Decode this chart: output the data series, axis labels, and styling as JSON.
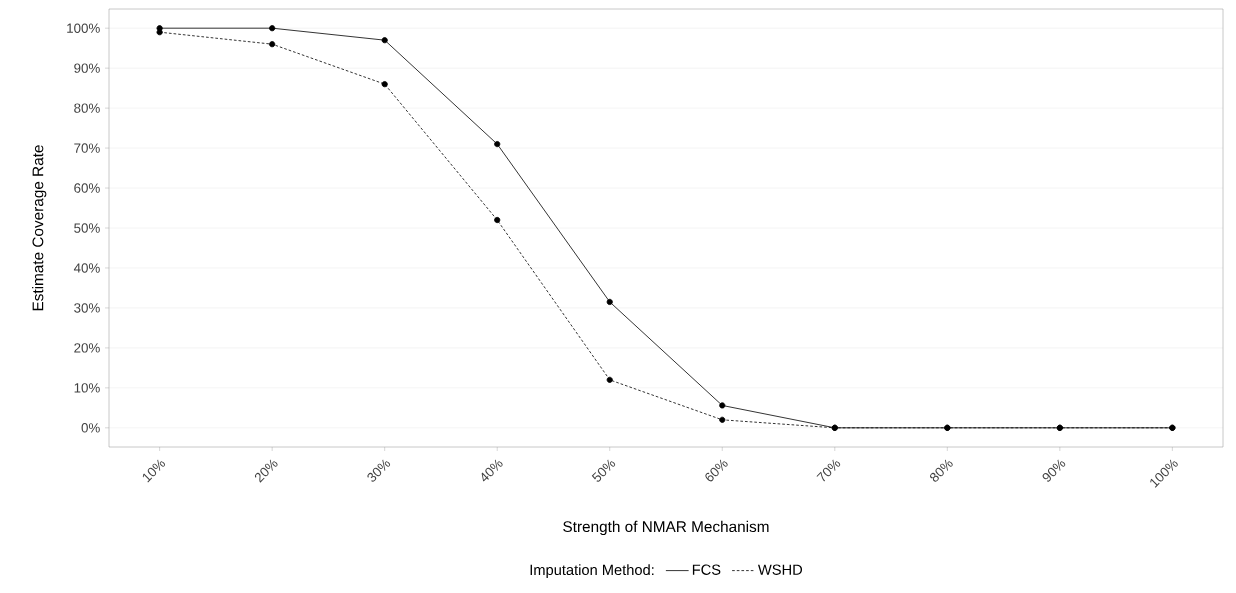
{
  "chart_data": {
    "type": "line",
    "xlabel": "Strength of NMAR Mechanism",
    "ylabel": "Estimate Coverage Rate",
    "legend_title": "Imputation Method:",
    "categories": [
      "10%",
      "20%",
      "30%",
      "40%",
      "50%",
      "60%",
      "70%",
      "80%",
      "90%",
      "100%"
    ],
    "series": [
      {
        "name": "FCS",
        "color": "#000000",
        "line_style": "solid",
        "values": [
          100,
          100,
          97,
          71,
          31.5,
          5.6,
          0,
          0,
          0,
          0
        ]
      },
      {
        "name": "WSHD",
        "color": "#000000",
        "line_style": "dashed",
        "values": [
          99,
          96,
          86,
          52,
          12,
          2,
          0,
          0,
          0,
          0
        ]
      }
    ],
    "ylim": [
      -4.8,
      104.8
    ],
    "yticks": [
      {
        "value": 0,
        "label": "0%"
      },
      {
        "value": 10,
        "label": "10%"
      },
      {
        "value": 20,
        "label": "20%"
      },
      {
        "value": 30,
        "label": "30%"
      },
      {
        "value": 40,
        "label": "40%"
      },
      {
        "value": 50,
        "label": "50%"
      },
      {
        "value": 60,
        "label": "60%"
      },
      {
        "value": 70,
        "label": "70%"
      },
      {
        "value": 80,
        "label": "80%"
      },
      {
        "value": 90,
        "label": "90%"
      },
      {
        "value": 100,
        "label": "100%"
      }
    ],
    "grid": "y",
    "legend": "bottom",
    "marker": "circle"
  }
}
